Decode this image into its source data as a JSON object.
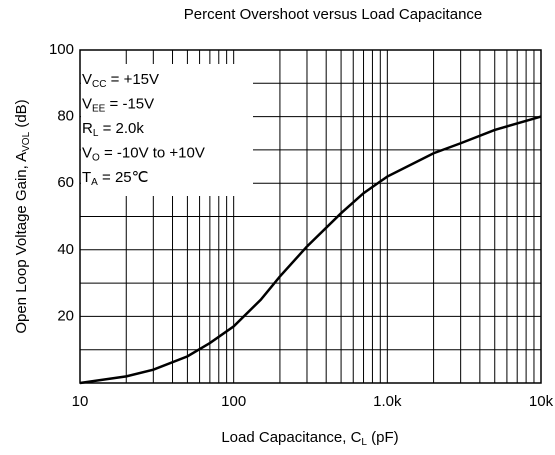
{
  "chart_data": {
    "type": "line",
    "title": "Percent Overshoot versus Load Capacitance",
    "x_label": [
      "Load Capacitance, C",
      "L",
      " (pF)"
    ],
    "y_label": [
      "Open Loop Voltage Gain, A",
      "VOL",
      " (dB)"
    ],
    "annotations": [
      [
        "V",
        "CC",
        " = +15V"
      ],
      [
        "V",
        "EE",
        " = -15V"
      ],
      [
        "R",
        "L",
        " = 2.0k"
      ],
      [
        "V",
        "O",
        " = -10V to +10V"
      ],
      [
        "T",
        "A",
        " = 25℃"
      ]
    ],
    "xscale": "log",
    "xlim": [
      10,
      10000
    ],
    "xticks": [
      10,
      100,
      {
        "value": 1000,
        "label": "1.0k"
      },
      {
        "value": 10000,
        "label": "10k"
      }
    ],
    "ylim": [
      0,
      100
    ],
    "yticks": [
      20,
      40,
      60,
      80,
      100
    ],
    "yminor": [
      10,
      30,
      50,
      70,
      90
    ],
    "grid": true,
    "series": [
      {
        "name": "AVOL",
        "color": "#000000",
        "x": [
          10,
          20,
          30,
          50,
          70,
          100,
          150,
          200,
          300,
          500,
          700,
          1000,
          2000,
          3000,
          5000,
          10000
        ],
        "values": [
          0,
          2,
          4,
          8,
          12,
          17,
          25,
          32,
          41,
          51,
          57,
          62,
          69,
          72,
          76,
          80
        ]
      }
    ]
  }
}
